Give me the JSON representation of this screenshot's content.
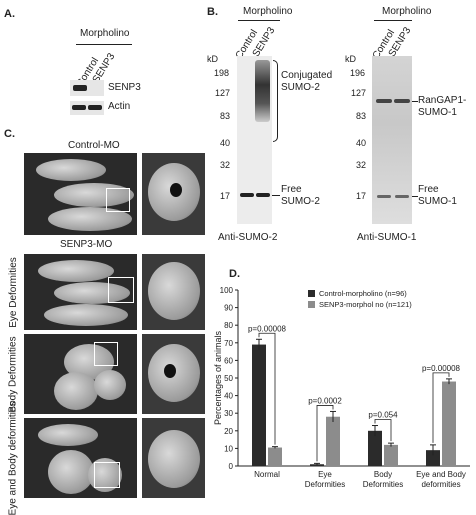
{
  "panel_a": {
    "letter": "A.",
    "header": "Morpholino",
    "lanes": [
      "Control",
      "SENP3"
    ],
    "rows": [
      "SENP3",
      "Actin"
    ]
  },
  "panel_b": {
    "letter": "B.",
    "left": {
      "header": "Morpholino",
      "lanes": [
        "Control",
        "SENP3"
      ],
      "kd_label": "kD",
      "markers": [
        "198",
        "127",
        "83",
        "40",
        "32",
        "17"
      ],
      "annot_top": [
        "Conjugated",
        "SUMO-2"
      ],
      "annot_bottom": [
        "Free",
        "SUMO-2"
      ],
      "antibody": "Anti-SUMO-2"
    },
    "right": {
      "header": "Morpholino",
      "lanes": [
        "Control",
        "SENP3"
      ],
      "kd_label": "kD",
      "markers": [
        "196",
        "127",
        "83",
        "40",
        "32",
        "17"
      ],
      "annot_top": [
        "RanGAP1-",
        "SUMO-1"
      ],
      "annot_bottom": [
        "Free",
        "SUMO-1"
      ],
      "antibody": "Anti-SUMO-1"
    }
  },
  "panel_c": {
    "letter": "C.",
    "control_label": "Control-MO",
    "senp3_label": "SENP3-MO",
    "rows": [
      "Eye Deformities",
      "Body Deformities",
      "Eye and Body deformities"
    ]
  },
  "panel_d": {
    "letter": "D."
  },
  "chart_data": {
    "type": "bar",
    "categories": [
      "Normal",
      "Eye Deformities",
      "Body Deformities",
      "Eye and Body deformities"
    ],
    "series": [
      {
        "name": "Control-morpholino (n=96)",
        "values": [
          69,
          1,
          20,
          9
        ],
        "errors": [
          3,
          0.5,
          3,
          3
        ],
        "color": "#2b2b2b"
      },
      {
        "name": "SENP3-morphol no (n=121)",
        "values": [
          10.5,
          28,
          12,
          48
        ],
        "errors": [
          0.5,
          3,
          1,
          1.5
        ],
        "color": "#8c8c8c"
      }
    ],
    "ylabel": "Percentages of animals",
    "ylim": [
      0,
      100
    ],
    "yticks": [
      "0",
      "10",
      "20",
      "30",
      "40",
      "50",
      "60",
      "70",
      "80",
      "90",
      "100"
    ],
    "annotations": [
      "p=0.00008",
      "p=0.0002",
      "p=0.054",
      "p=0.00008"
    ],
    "legend": "top-right"
  }
}
